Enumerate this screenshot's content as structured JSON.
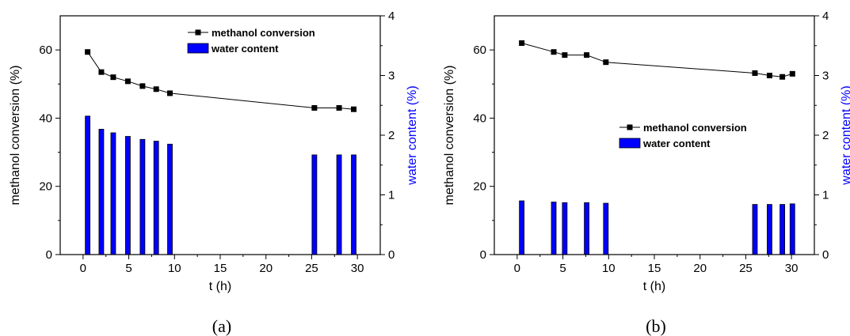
{
  "chart_data": [
    {
      "type": "bar+line",
      "caption": "(a)",
      "xlabel": "t (h)",
      "ylabel_left": "methanol conversion (%)",
      "ylabel_right": "water content (%)",
      "xlim": [
        -2.5,
        32.5
      ],
      "ylim_left": [
        0,
        70
      ],
      "ylim_right": [
        0,
        4
      ],
      "xticks": [
        0,
        5,
        10,
        15,
        20,
        25,
        30
      ],
      "yticks_left": [
        0,
        20,
        40,
        60
      ],
      "yticks_right": [
        0,
        1,
        2,
        3,
        4
      ],
      "grid": false,
      "legend_position": "top-right",
      "right_axis_color": "#0000ff",
      "series": [
        {
          "name": "methanol conversion",
          "kind": "line",
          "axis": "left",
          "marker": "square",
          "color": "#000000",
          "x": [
            0.5,
            2,
            3.3,
            4.9,
            6.5,
            8,
            9.5,
            25.3,
            28,
            29.6
          ],
          "y": [
            59.4,
            53.5,
            52.0,
            50.8,
            49.4,
            48.5,
            47.3,
            43.0,
            43.0,
            42.6
          ]
        },
        {
          "name": "water content",
          "kind": "bar",
          "axis": "right",
          "color": "#0000ff",
          "x": [
            0.5,
            2,
            3.3,
            4.9,
            6.5,
            8,
            9.5,
            25.3,
            28,
            29.6
          ],
          "y": [
            2.32,
            2.1,
            2.04,
            1.98,
            1.93,
            1.9,
            1.85,
            1.67,
            1.67,
            1.67
          ]
        }
      ]
    },
    {
      "type": "bar+line",
      "caption": "(b)",
      "xlabel": "t (h)",
      "ylabel_left": "methanol conversion (%)",
      "ylabel_right": "water content (%)",
      "xlim": [
        -2.5,
        32.5
      ],
      "ylim_left": [
        0,
        70
      ],
      "ylim_right": [
        0,
        4
      ],
      "xticks": [
        0,
        5,
        10,
        15,
        20,
        25,
        30
      ],
      "yticks_left": [
        0,
        20,
        40,
        60
      ],
      "yticks_right": [
        0,
        1,
        2,
        3,
        4
      ],
      "grid": false,
      "legend_position": "center-right",
      "right_axis_color": "#0000ff",
      "series": [
        {
          "name": "methanol conversion",
          "kind": "line",
          "axis": "left",
          "marker": "square",
          "color": "#000000",
          "x": [
            0.5,
            4,
            5.2,
            7.6,
            9.7,
            26,
            27.6,
            29,
            30.1
          ],
          "y": [
            62.0,
            59.4,
            58.5,
            58.5,
            56.4,
            53.2,
            52.5,
            52.1,
            53.0
          ]
        },
        {
          "name": "water content",
          "kind": "bar",
          "axis": "right",
          "color": "#0000ff",
          "x": [
            0.5,
            4,
            5.2,
            7.6,
            9.7,
            26,
            27.6,
            29,
            30.1
          ],
          "y": [
            0.9,
            0.88,
            0.87,
            0.87,
            0.86,
            0.84,
            0.84,
            0.84,
            0.85
          ]
        }
      ]
    }
  ]
}
